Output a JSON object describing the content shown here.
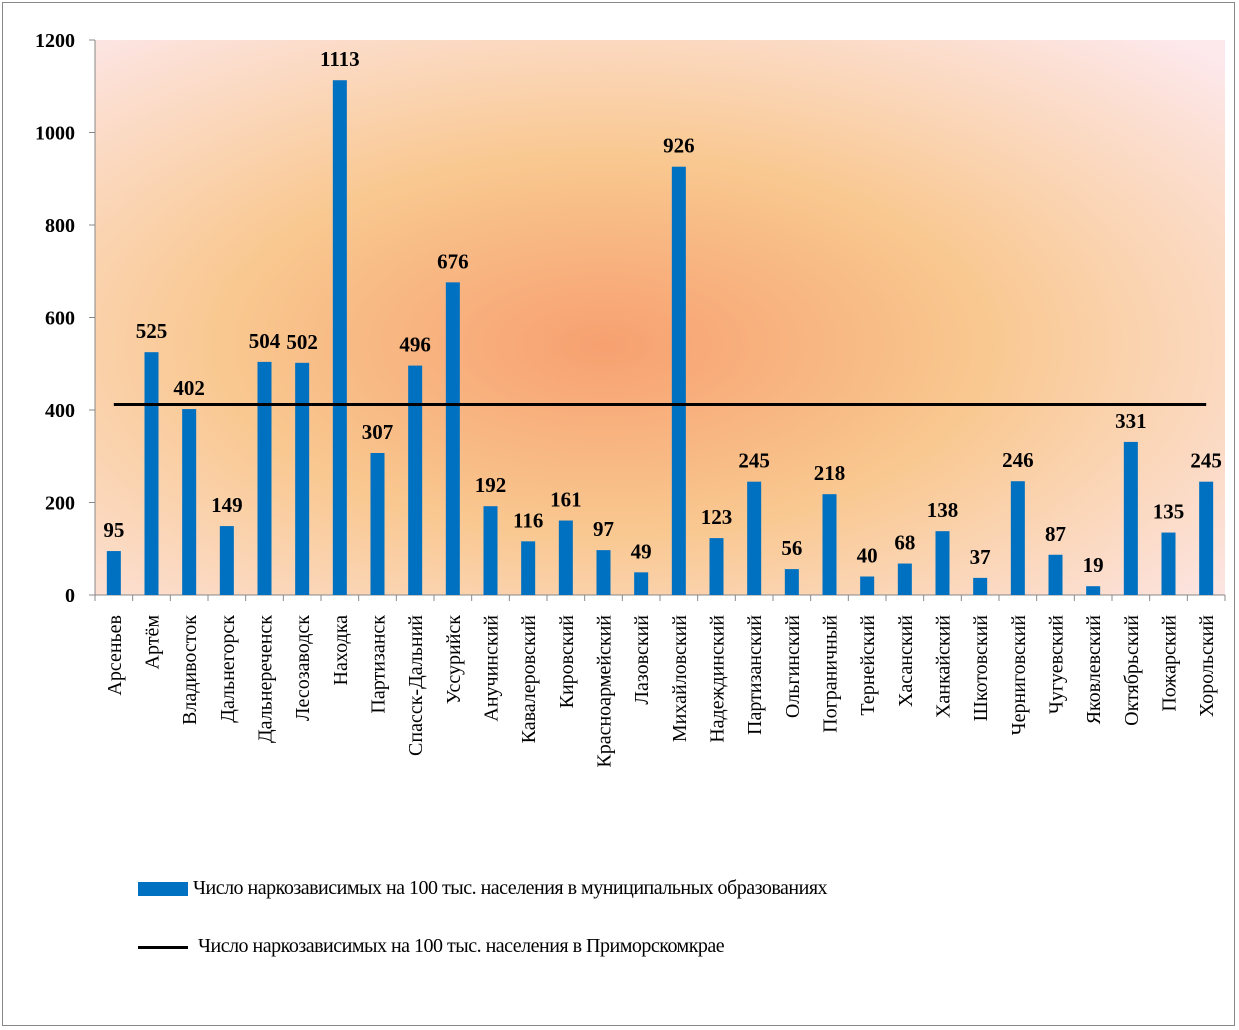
{
  "chart_data": {
    "type": "bar",
    "categories": [
      "Арсеньев",
      "Артём",
      "Владивосток",
      "Дальнегорск",
      "Дальнереченск",
      "Лесозаводск",
      "Находка",
      "Партизанск",
      "Спасск-Дальний",
      "Уссурийск",
      "Анучинский",
      "Кавалеровский",
      "Кировский",
      "Красноармейский",
      "Лазовский",
      "Михайловский",
      "Надеждинский",
      "Партизанский",
      "Ольгинский",
      "Пограничный",
      "Тернейский",
      "Хасанский",
      "Ханкайский",
      "Шкотовский",
      "Черниговский",
      "Чугуевский",
      "Яковлевский",
      "Октябрьский",
      "Пожарский",
      "Хорольский"
    ],
    "series": [
      {
        "name": "Число наркозависимых на 100 тыс. населения в муниципальных образованиях",
        "color": "#0070c0",
        "type": "bar",
        "values": [
          95,
          525,
          402,
          149,
          504,
          502,
          1113,
          307,
          496,
          676,
          192,
          116,
          161,
          97,
          49,
          926,
          123,
          245,
          56,
          218,
          40,
          68,
          138,
          37,
          246,
          87,
          19,
          331,
          135,
          245
        ]
      },
      {
        "name": "Число наркозависимых на 100 тыс. населения в Приморскомкрае",
        "color": "#000000",
        "type": "line",
        "values": [
          412,
          412,
          412,
          412,
          412,
          412,
          412,
          412,
          412,
          412,
          412,
          412,
          412,
          412,
          412,
          412,
          412,
          412,
          412,
          412,
          412,
          412,
          412,
          412,
          412,
          412,
          412,
          412,
          412,
          412
        ]
      }
    ],
    "ylim": [
      0,
      1200
    ],
    "yticks": [
      0,
      200,
      400,
      600,
      800,
      1000,
      1200
    ],
    "grid": false,
    "legend": "bottom"
  }
}
